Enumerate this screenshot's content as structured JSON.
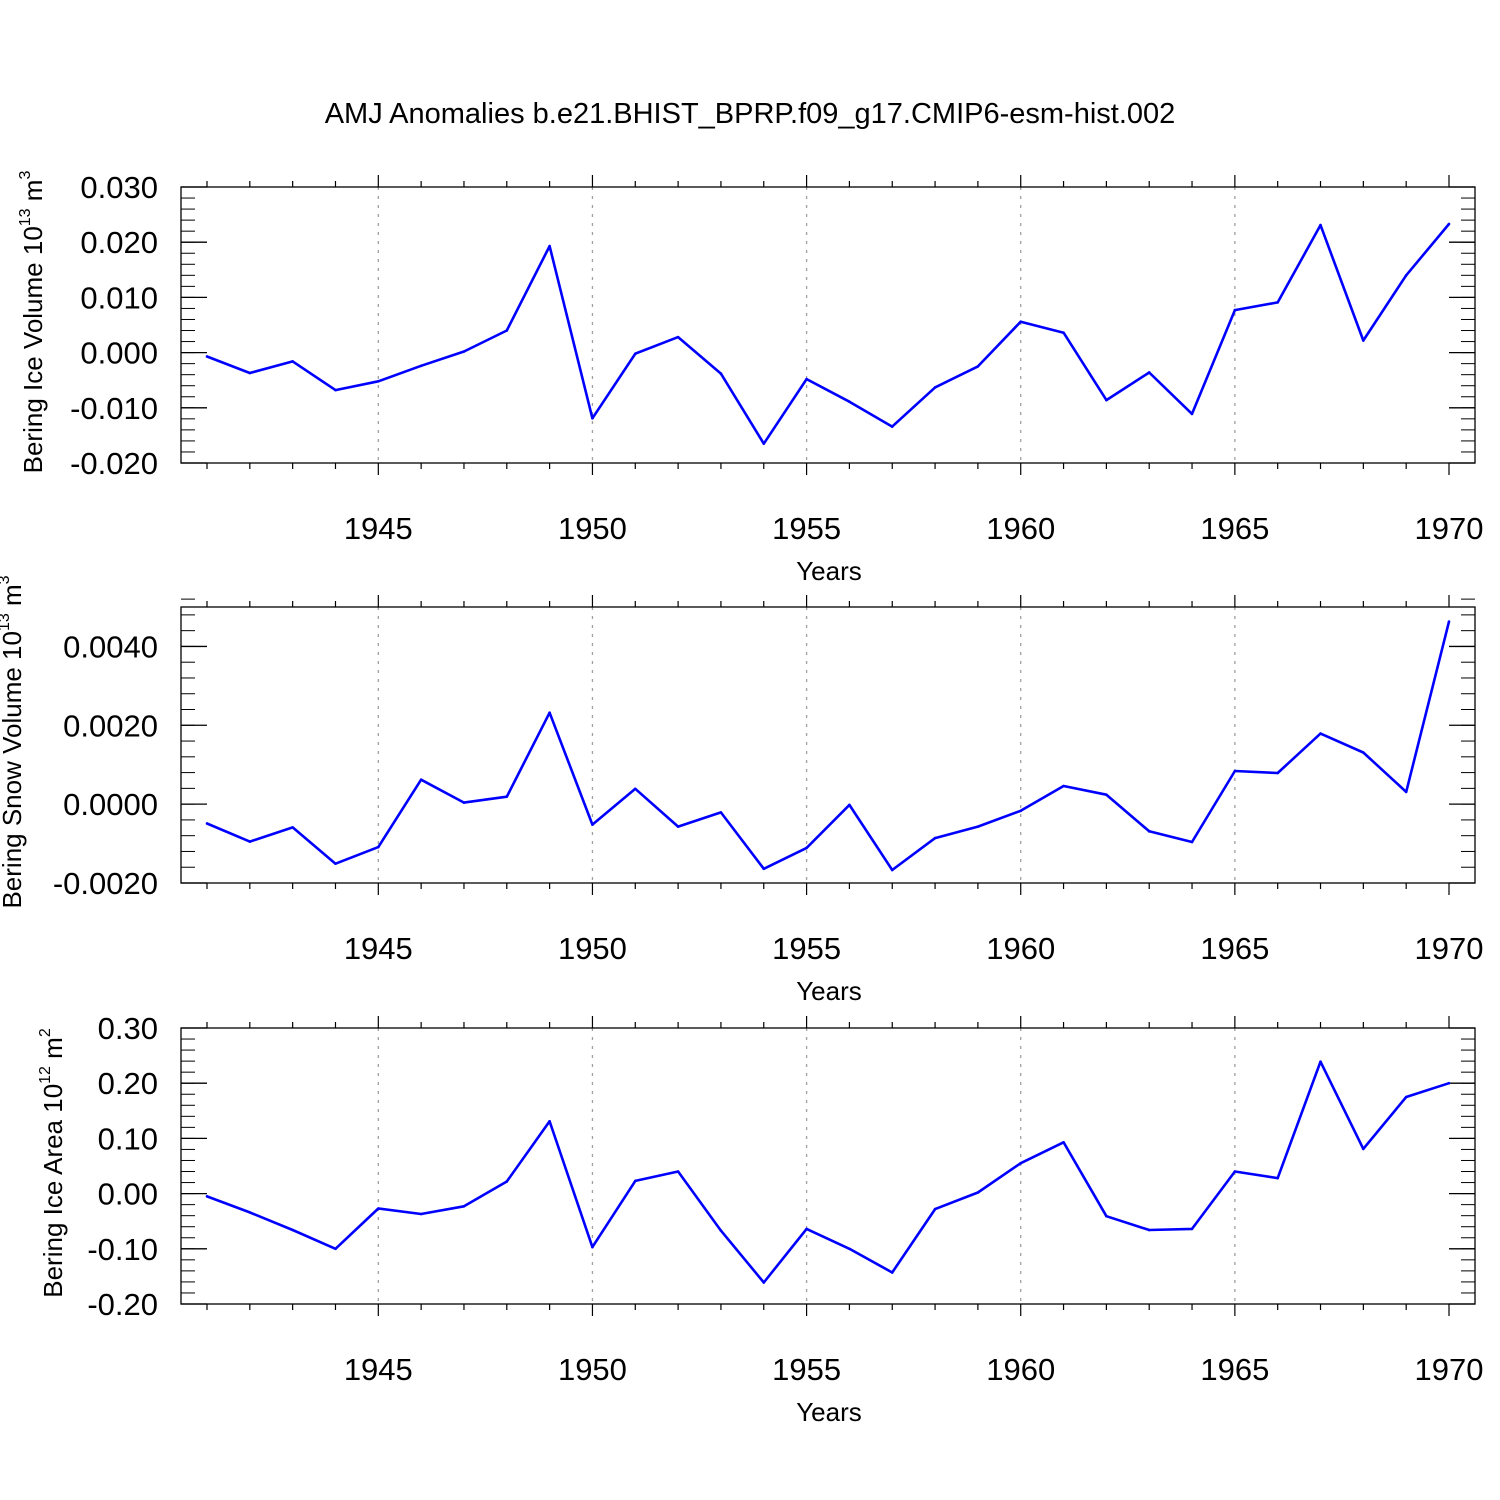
{
  "title": "AMJ Anomalies b.e21.BHIST_BPRP.f09_g17.CMIP6-esm-hist.002",
  "colors": {
    "line": "#0000ff",
    "grid": "#a0a0a0",
    "axes": "#000000"
  },
  "chart_data": [
    {
      "type": "line",
      "ylabel": {
        "text": "Bering Ice Volume 10",
        "sup": "13",
        "unit": " m",
        "unit_sup": "3"
      },
      "xlabel": "Years",
      "xlim": [
        1941,
        1970
      ],
      "ylim": [
        -0.02,
        0.03
      ],
      "xticks": [
        1945,
        1950,
        1955,
        1960,
        1965,
        1970
      ],
      "xtick_labels": [
        "1945",
        "1950",
        "1955",
        "1960",
        "1965",
        "1970"
      ],
      "yticks": [
        -0.02,
        -0.01,
        0.0,
        0.01,
        0.02,
        0.03
      ],
      "ytick_labels": [
        "-0.020",
        "-0.010",
        "0.000",
        "0.010",
        "0.020",
        "0.030"
      ],
      "grid": "vertical dotted lines at labeled years",
      "x": [
        1941,
        1942,
        1943,
        1944,
        1945,
        1946,
        1947,
        1948,
        1949,
        1950,
        1951,
        1952,
        1953,
        1954,
        1955,
        1956,
        1957,
        1958,
        1959,
        1960,
        1961,
        1962,
        1963,
        1964,
        1965,
        1966,
        1967,
        1968,
        1969,
        1970
      ],
      "series": [
        {
          "values": [
            -0.0007,
            -0.0037,
            -0.0016,
            -0.0068,
            -0.0052,
            -0.0024,
            0.0002,
            0.004,
            0.0193,
            -0.0119,
            -0.0002,
            0.0028,
            -0.0038,
            -0.0165,
            -0.0048,
            -0.0089,
            -0.0134,
            -0.0063,
            -0.0025,
            0.0056,
            0.0036,
            -0.0086,
            -0.0036,
            -0.0111,
            0.0077,
            0.0091,
            0.0231,
            0.0022,
            0.014,
            0.0233
          ]
        }
      ]
    },
    {
      "type": "line",
      "ylabel": {
        "text": "Bering Snow Volume 10",
        "sup": "13",
        "unit": " m",
        "unit_sup": "3"
      },
      "xlabel": "Years",
      "xlim": [
        1941,
        1970
      ],
      "ylim": [
        -0.002,
        0.005
      ],
      "xticks": [
        1945,
        1950,
        1955,
        1960,
        1965,
        1970
      ],
      "xtick_labels": [
        "1945",
        "1950",
        "1955",
        "1960",
        "1965",
        "1970"
      ],
      "yticks": [
        -0.002,
        0.0,
        0.002,
        0.004
      ],
      "ytick_labels": [
        "-0.0020",
        "0.0000",
        "0.0020",
        "0.0040"
      ],
      "grid": "vertical dotted lines at labeled years",
      "x": [
        1941,
        1942,
        1943,
        1944,
        1945,
        1946,
        1947,
        1948,
        1949,
        1950,
        1951,
        1952,
        1953,
        1954,
        1955,
        1956,
        1957,
        1958,
        1959,
        1960,
        1961,
        1962,
        1963,
        1964,
        1965,
        1966,
        1967,
        1968,
        1969,
        1970
      ],
      "series": [
        {
          "values": [
            -0.00049,
            -0.00095,
            -0.00059,
            -0.00151,
            -0.00109,
            0.00062,
            4e-05,
            0.00019,
            0.00232,
            -0.00052,
            0.00039,
            -0.00057,
            -0.00021,
            -0.00164,
            -0.00111,
            -2e-05,
            -0.00167,
            -0.00086,
            -0.00057,
            -0.00017,
            0.00046,
            0.00024,
            -0.00069,
            -0.00096,
            0.00084,
            0.00079,
            0.00179,
            0.00131,
            0.00031,
            0.00463
          ]
        }
      ]
    },
    {
      "type": "line",
      "ylabel": {
        "text": "Bering Ice Area 10",
        "sup": "12",
        "unit": " m",
        "unit_sup": "2"
      },
      "xlabel": "Years",
      "xlim": [
        1941,
        1970
      ],
      "ylim": [
        -0.2,
        0.3
      ],
      "xticks": [
        1945,
        1950,
        1955,
        1960,
        1965,
        1970
      ],
      "xtick_labels": [
        "1945",
        "1950",
        "1955",
        "1960",
        "1965",
        "1970"
      ],
      "yticks": [
        -0.2,
        -0.1,
        0.0,
        0.1,
        0.2,
        0.3
      ],
      "ytick_labels": [
        "-0.20",
        "-0.10",
        "0.00",
        "0.10",
        "0.20",
        "0.30"
      ],
      "grid": "vertical dotted lines at labeled years",
      "x": [
        1941,
        1942,
        1943,
        1944,
        1945,
        1946,
        1947,
        1948,
        1949,
        1950,
        1951,
        1952,
        1953,
        1954,
        1955,
        1956,
        1957,
        1958,
        1959,
        1960,
        1961,
        1962,
        1963,
        1964,
        1965,
        1966,
        1967,
        1968,
        1969,
        1970
      ],
      "series": [
        {
          "values": [
            -0.005,
            -0.034,
            -0.066,
            -0.1,
            -0.027,
            -0.037,
            -0.023,
            0.022,
            0.131,
            -0.097,
            0.023,
            0.04,
            -0.067,
            -0.161,
            -0.064,
            -0.1,
            -0.143,
            -0.028,
            0.002,
            0.055,
            0.093,
            -0.041,
            -0.066,
            -0.064,
            0.04,
            0.028,
            0.239,
            0.081,
            0.175,
            0.2
          ]
        }
      ]
    }
  ]
}
